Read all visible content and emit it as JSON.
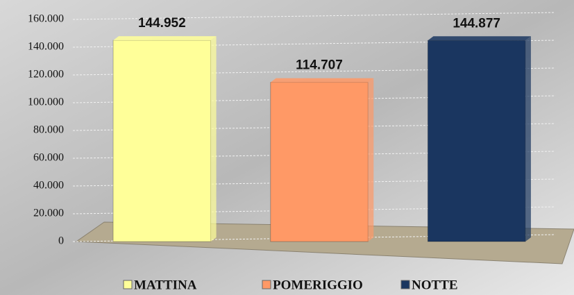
{
  "chart_data": {
    "type": "bar",
    "categories": [
      null
    ],
    "series": [
      {
        "name": "MATTINA",
        "color": "#ffff99",
        "values": [
          144952
        ],
        "value_labels": [
          "144.952"
        ]
      },
      {
        "name": "POMERIGGIO",
        "color": "#ff9966",
        "values": [
          114707
        ],
        "value_labels": [
          "114.707"
        ]
      },
      {
        "name": "NOTTE",
        "color": "#1a3660",
        "values": [
          144877
        ],
        "value_labels": [
          "144.877"
        ]
      }
    ],
    "ylim": [
      0,
      160000
    ],
    "yticks": [
      0,
      {
        "value": 20000,
        "label": "20.000"
      },
      {
        "value": 40000,
        "label": "40.000"
      },
      {
        "value": 60000,
        "label": "60.000"
      },
      {
        "value": 80000,
        "label": "80.000"
      },
      {
        "value": 100000,
        "label": "100.000"
      },
      {
        "value": 120000,
        "label": "120.000"
      },
      {
        "value": 140000,
        "label": "140.000"
      },
      {
        "value": 160000,
        "label": "160.000"
      }
    ],
    "grid": true
  }
}
